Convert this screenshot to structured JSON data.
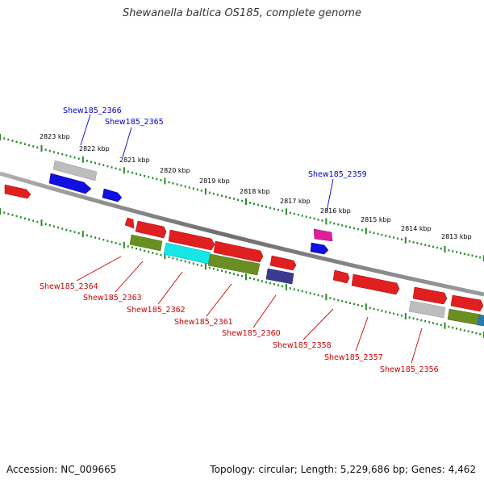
{
  "title": "Shewanella baltica OS185, complete genome",
  "footer": {
    "accession": "Accession: NC_009665",
    "summary": "Topology: circular; Length: 5,229,686 bp; Genes: 4,462"
  },
  "colors": {
    "backbone": "#8a8a8a",
    "ticks": "#2a8a2a",
    "top_label": "#0000cc",
    "bottom_label": "#cc0000"
  },
  "scale_labels": [
    "2823 kbp",
    "2822 kbp",
    "2821 kbp",
    "2820 kbp",
    "2819 kbp",
    "2818 kbp",
    "2817 kbp",
    "2816 kbp",
    "2815 kbp",
    "2814 kbp",
    "2813 kbp"
  ],
  "genes_top": [
    "Shew185_2366",
    "Shew185_2365",
    "Shew185_2359"
  ],
  "genes_bottom": [
    "Shew185_2364",
    "Shew185_2363",
    "Shew185_2362",
    "Shew185_2361",
    "Shew185_2360",
    "Shew185_2358",
    "Shew185_2357",
    "Shew185_2356"
  ]
}
